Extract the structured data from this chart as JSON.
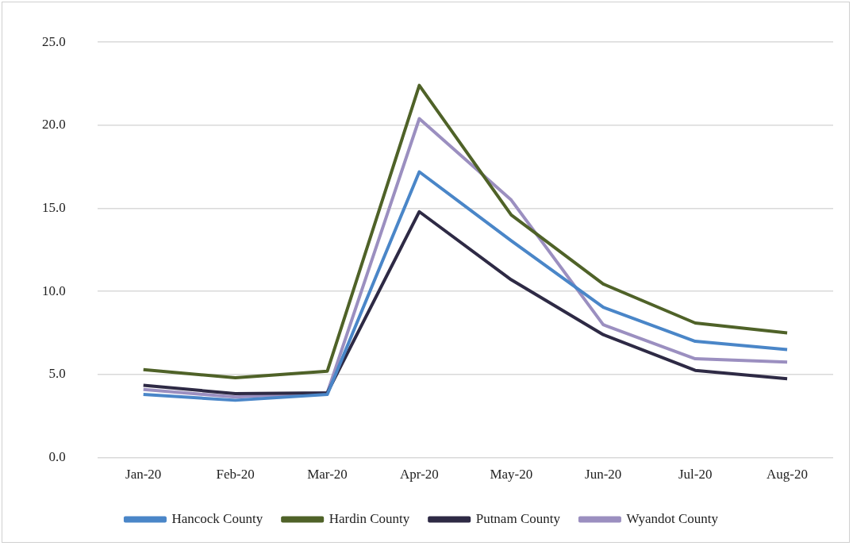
{
  "chart_data": {
    "type": "line",
    "categories": [
      "Jan-20",
      "Feb-20",
      "Mar-20",
      "Apr-20",
      "May-20",
      "Jun-20",
      "Jul-20",
      "Aug-20"
    ],
    "series": [
      {
        "name": "Hancock County",
        "color": "#4a86c8",
        "values": [
          3.8,
          3.45,
          3.8,
          17.2,
          13.05,
          9.05,
          7.0,
          6.5
        ]
      },
      {
        "name": "Hardin County",
        "color": "#4f6228",
        "values": [
          5.3,
          4.8,
          5.2,
          22.4,
          14.6,
          10.45,
          8.1,
          7.5
        ]
      },
      {
        "name": "Putnam County",
        "color": "#2e2a45",
        "values": [
          4.35,
          3.85,
          3.9,
          14.8,
          10.7,
          7.4,
          5.25,
          4.75
        ]
      },
      {
        "name": "Wyandot County",
        "color": "#9b8fc0",
        "values": [
          4.1,
          3.65,
          3.9,
          20.4,
          15.5,
          8.0,
          5.95,
          5.75
        ]
      }
    ],
    "ylim": [
      0,
      25
    ],
    "yticks": [
      {
        "value": 0,
        "label": "0.0"
      },
      {
        "value": 5,
        "label": "5.0"
      },
      {
        "value": 10,
        "label": "10.0"
      },
      {
        "value": 15,
        "label": "15.0"
      },
      {
        "value": 20,
        "label": "20.0"
      },
      {
        "value": 25,
        "label": "25.0"
      }
    ],
    "grid": "y",
    "legend": "bottom",
    "marker": "none",
    "line_style": "solid"
  }
}
